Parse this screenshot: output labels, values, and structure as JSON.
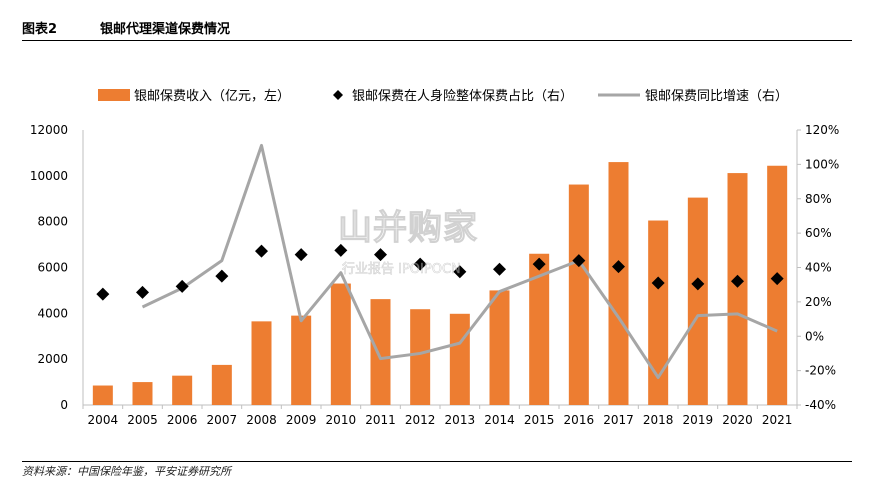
{
  "figure": {
    "label": "图表2",
    "title": "银邮代理渠道保费情况",
    "source": "资料来源：中国保险年鉴，平安证券研究所"
  },
  "watermark": {
    "main": "山并购家",
    "sub": "行业报告 IPOIPOCN"
  },
  "chart_data": {
    "type": "bar",
    "categories": [
      "2004",
      "2005",
      "2006",
      "2007",
      "2008",
      "2009",
      "2010",
      "2011",
      "2012",
      "2013",
      "2014",
      "2015",
      "2016",
      "2017",
      "2018",
      "2019",
      "2020",
      "2021"
    ],
    "left_axis": {
      "ylim": [
        0,
        12000
      ],
      "ticks": [
        "0",
        "2000",
        "4000",
        "6000",
        "8000",
        "10000",
        "12000"
      ]
    },
    "right_axis": {
      "ylim": [
        -40,
        120
      ],
      "ticks": [
        "-40%",
        "-20%",
        "0%",
        "20%",
        "40%",
        "60%",
        "80%",
        "100%",
        "120%"
      ]
    },
    "legend_position": "top",
    "series": [
      {
        "name": "银邮保费收入（亿元，左）",
        "kind": "bar",
        "axis": "left",
        "color": "#ED7D31",
        "values": [
          850,
          1000,
          1280,
          1750,
          3650,
          3900,
          5300,
          4620,
          4180,
          3980,
          5000,
          6600,
          9620,
          10600,
          8050,
          9050,
          10120,
          10440
        ]
      },
      {
        "name": "银邮保费在人身险整体保费占比（右）",
        "kind": "scatter",
        "axis": "right",
        "color": "#000000",
        "values": [
          24.5,
          25.5,
          29,
          35,
          49.5,
          47.5,
          50,
          47.5,
          42,
          37.5,
          39,
          42,
          44,
          40.5,
          31,
          30.5,
          32,
          33.5
        ]
      },
      {
        "name": "银邮保费同比增速（右）",
        "kind": "line",
        "axis": "right",
        "color": "#A6A6A6",
        "values": [
          null,
          17,
          28,
          44,
          111,
          9,
          37,
          -13,
          -10,
          -4,
          26,
          35,
          44,
          11,
          -24,
          12,
          13,
          3
        ]
      }
    ]
  }
}
